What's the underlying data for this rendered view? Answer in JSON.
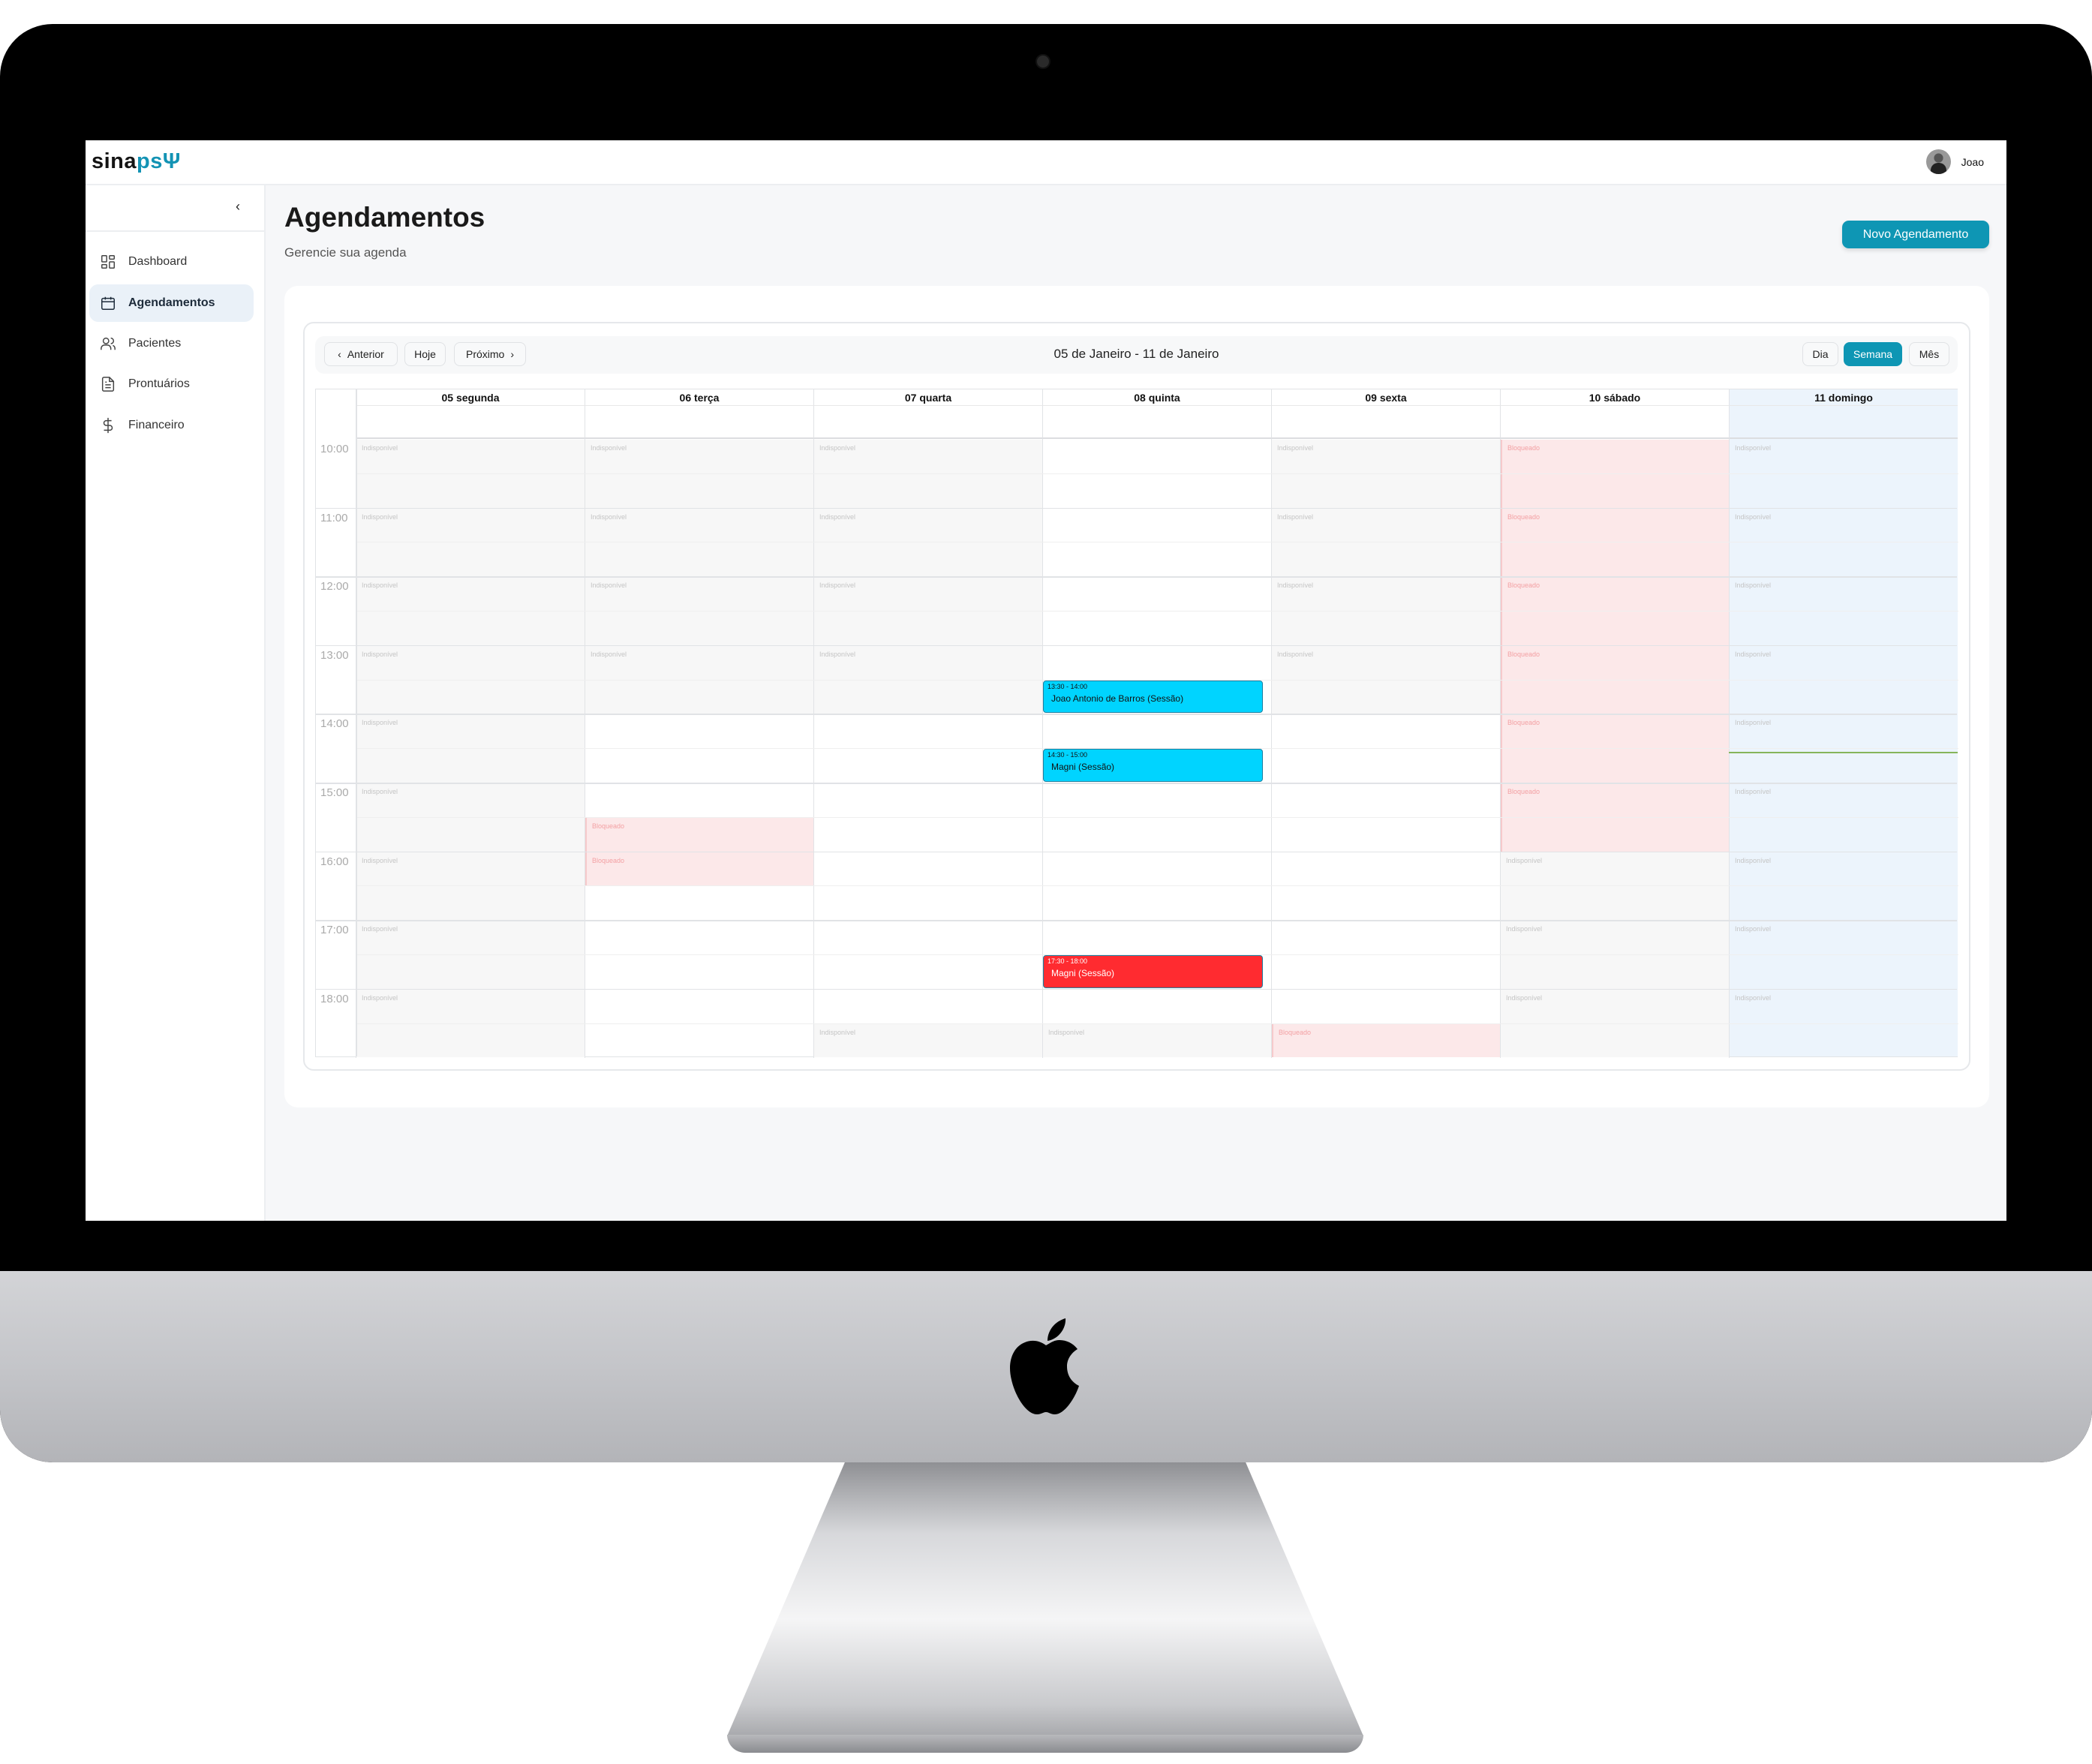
{
  "app": {
    "logo_part1": "sina",
    "logo_part2": "psΨ",
    "user_name": "Joao"
  },
  "sidebar": {
    "collapse_icon": "chevron-left-icon",
    "items": [
      {
        "label": "Dashboard",
        "icon": "dashboard-icon",
        "active": false
      },
      {
        "label": "Agendamentos",
        "icon": "calendar-icon",
        "active": true
      },
      {
        "label": "Pacientes",
        "icon": "users-icon",
        "active": false
      },
      {
        "label": "Prontuários",
        "icon": "file-text-icon",
        "active": false
      },
      {
        "label": "Financeiro",
        "icon": "dollar-icon",
        "active": false
      }
    ]
  },
  "page": {
    "title": "Agendamentos",
    "subtitle": "Gerencie sua agenda",
    "new_button": "Novo Agendamento"
  },
  "toolbar": {
    "prev": "Anterior",
    "today": "Hoje",
    "next": "Próximo",
    "range": "05 de Janeiro - 11 de Janeiro",
    "views": [
      "Dia",
      "Semana",
      "Mês"
    ],
    "active_view": "Semana"
  },
  "colors": {
    "accent": "#0e96b4",
    "event": "#00d4ff",
    "event_late": "#ff2b30",
    "blocked_bg": "#fce8e9",
    "unavailable_bg": "#f7f7f7",
    "today_bg": "#ecf4fc",
    "now_line": "#86b55b"
  },
  "calendar": {
    "days": [
      "05 segunda",
      "06 terça",
      "07 quarta",
      "08 quinta",
      "09 sexta",
      "10 sábado",
      "11 domingo"
    ],
    "today_index": 6,
    "hours": [
      "10:00",
      "11:00",
      "12:00",
      "13:00",
      "14:00",
      "15:00",
      "16:00",
      "17:00",
      "18:00"
    ],
    "now": "14:33",
    "blocks": [
      {
        "day": 0,
        "start": "10:00",
        "end": "19:00",
        "type": "unavailable",
        "label": "Indisponível",
        "hourly": true
      },
      {
        "day": 1,
        "start": "10:00",
        "end": "14:00",
        "type": "unavailable",
        "label": "Indisponível",
        "hourly": true
      },
      {
        "day": 1,
        "start": "15:30",
        "end": "16:00",
        "type": "blocked",
        "label": "Bloqueado"
      },
      {
        "day": 1,
        "start": "16:00",
        "end": "16:30",
        "type": "blocked",
        "label": "Bloqueado"
      },
      {
        "day": 2,
        "start": "10:00",
        "end": "14:00",
        "type": "unavailable",
        "label": "Indisponível",
        "hourly": true
      },
      {
        "day": 2,
        "start": "18:30",
        "end": "19:00",
        "type": "unavailable",
        "label": "Indisponível"
      },
      {
        "day": 3,
        "start": "18:30",
        "end": "19:00",
        "type": "unavailable",
        "label": "Indisponível"
      },
      {
        "day": 4,
        "start": "10:00",
        "end": "14:00",
        "type": "unavailable",
        "label": "Indisponível",
        "hourly": true
      },
      {
        "day": 4,
        "start": "18:30",
        "end": "19:00",
        "type": "blocked",
        "label": "Bloqueado"
      },
      {
        "day": 5,
        "start": "10:00",
        "end": "16:00",
        "type": "blocked",
        "label": "Bloqueado",
        "hourly": true
      },
      {
        "day": 5,
        "start": "16:00",
        "end": "19:00",
        "type": "unavailable",
        "label": "Indisponível",
        "hourly": true
      },
      {
        "day": 6,
        "start": "10:00",
        "end": "19:00",
        "type": "unavailable",
        "label": "Indisponível",
        "hourly": true
      }
    ],
    "events": [
      {
        "day": 3,
        "start": "13:30",
        "end": "14:00",
        "time": "13:30 - 14:00",
        "title": "Joao Antonio de Barros (Sessão)",
        "color": "#00d4ff",
        "text_color": "#111"
      },
      {
        "day": 3,
        "start": "14:30",
        "end": "15:00",
        "time": "14:30 - 15:00",
        "title": "Magni (Sessão)",
        "color": "#00d4ff",
        "text_color": "#111"
      },
      {
        "day": 3,
        "start": "17:30",
        "end": "18:00",
        "time": "17:30 - 18:00",
        "title": "Magni (Sessão)",
        "color": "#ff2b30",
        "text_color": "#fff"
      }
    ]
  }
}
